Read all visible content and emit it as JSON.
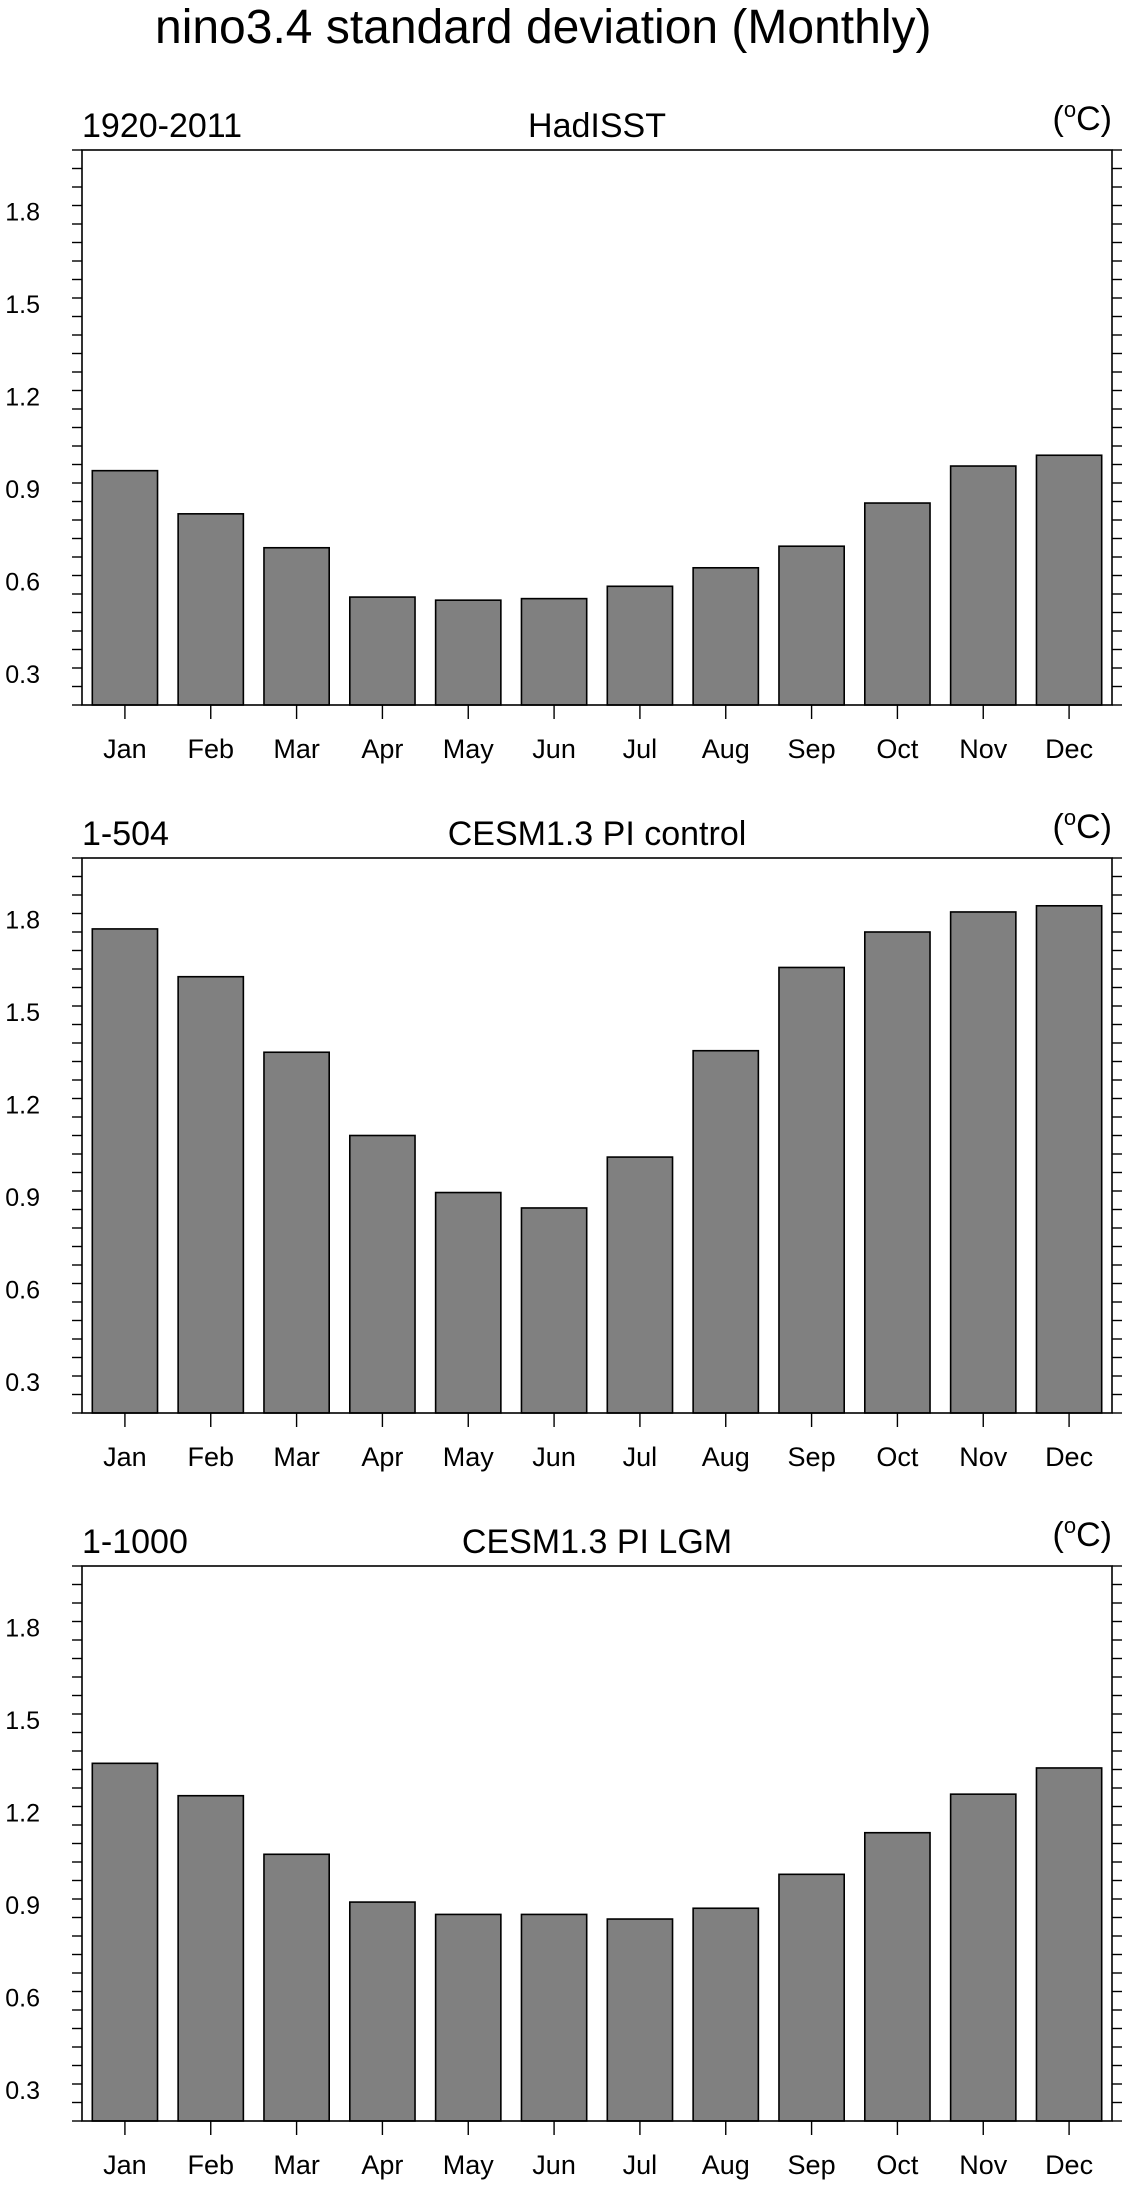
{
  "title": "nino3.4 standard deviation (Monthly)",
  "chart_data": [
    {
      "type": "bar",
      "left_label": "1920-2011",
      "center_title": "HadISST",
      "unit_base": "(",
      "unit_sup": "o",
      "unit_tail": "C)",
      "categories": [
        "Jan",
        "Feb",
        "Mar",
        "Apr",
        "May",
        "Jun",
        "Jul",
        "Aug",
        "Sep",
        "Oct",
        "Nov",
        "Dec"
      ],
      "values": [
        0.96,
        0.82,
        0.71,
        0.55,
        0.54,
        0.545,
        0.585,
        0.645,
        0.715,
        0.855,
        0.975,
        1.01
      ],
      "ylim": [
        0.2,
        2.0
      ],
      "yticks": [
        "0.3",
        "0.6",
        "0.9",
        "1.2",
        "1.5",
        "1.8"
      ],
      "bar_color": "#808080"
    },
    {
      "type": "bar",
      "left_label": "1-504",
      "center_title": "CESM1.3 PI control",
      "unit_base": "(",
      "unit_sup": "o",
      "unit_tail": "C)",
      "categories": [
        "Jan",
        "Feb",
        "Mar",
        "Apr",
        "May",
        "Jun",
        "Jul",
        "Aug",
        "Sep",
        "Oct",
        "Nov",
        "Dec"
      ],
      "values": [
        1.77,
        1.615,
        1.37,
        1.1,
        0.915,
        0.865,
        1.03,
        1.375,
        1.645,
        1.76,
        1.825,
        1.845
      ],
      "ylim": [
        0.2,
        2.0
      ],
      "yticks": [
        "0.3",
        "0.6",
        "0.9",
        "1.2",
        "1.5",
        "1.8"
      ],
      "bar_color": "#808080"
    },
    {
      "type": "bar",
      "left_label": "1-1000",
      "center_title": "CESM1.3 PI LGM",
      "unit_base": "(",
      "unit_sup": "o",
      "unit_tail": "C)",
      "categories": [
        "Jan",
        "Feb",
        "Mar",
        "Apr",
        "May",
        "Jun",
        "Jul",
        "Aug",
        "Sep",
        "Oct",
        "Nov",
        "Dec"
      ],
      "values": [
        1.36,
        1.255,
        1.065,
        0.91,
        0.87,
        0.87,
        0.855,
        0.89,
        1.0,
        1.135,
        1.26,
        1.345
      ],
      "ylim": [
        0.2,
        2.0
      ],
      "yticks": [
        "0.3",
        "0.6",
        "0.9",
        "1.2",
        "1.5",
        "1.8"
      ],
      "bar_color": "#808080"
    }
  ]
}
